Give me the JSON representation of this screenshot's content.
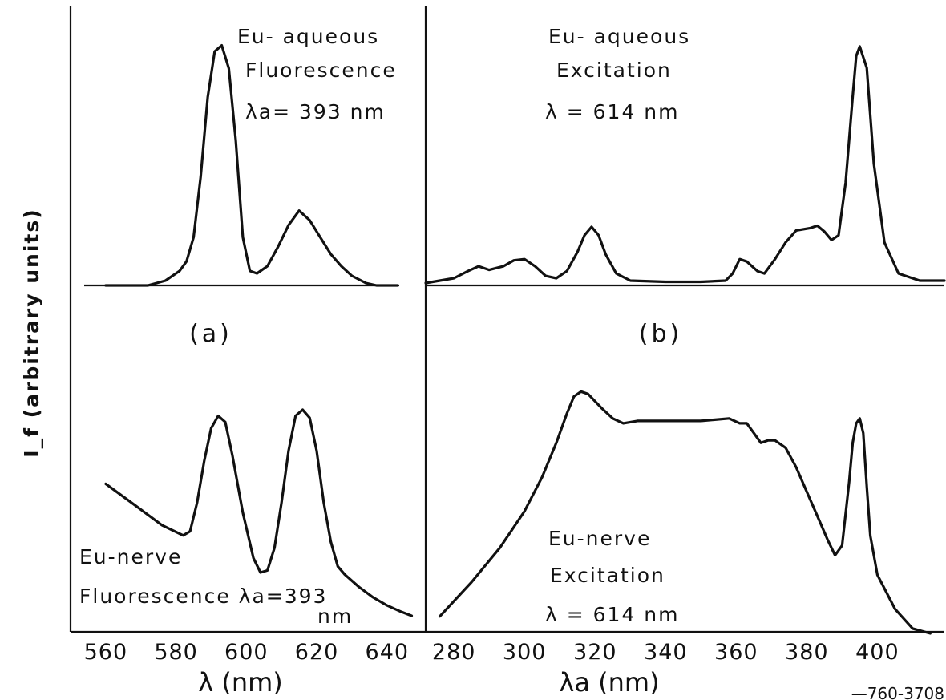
{
  "ylabel": "I_f (arbitrary units)",
  "footer_code": "—760-3708",
  "chart_data": [
    {
      "id": "a",
      "type": "line",
      "panel_label": "(a)",
      "xlabel": "λ (nm)",
      "xlim": [
        550,
        651
      ],
      "xticks": [
        560,
        580,
        600,
        620,
        640
      ],
      "subplots": [
        {
          "annotation": [
            "Eu- aqueous",
            "Fluorescence",
            "λa= 393 nm"
          ],
          "ylim": [
            0,
            1.05
          ],
          "x": [
            560,
            572,
            577,
            581,
            583,
            585,
            587,
            589,
            591,
            593,
            595,
            597,
            599,
            601,
            603,
            606,
            609,
            612,
            615,
            618,
            621,
            624,
            627,
            630,
            634,
            637,
            643
          ],
          "y": [
            0,
            0,
            0.02,
            0.06,
            0.1,
            0.2,
            0.45,
            0.78,
            0.97,
            0.995,
            0.9,
            0.6,
            0.2,
            0.06,
            0.05,
            0.08,
            0.16,
            0.25,
            0.31,
            0.27,
            0.2,
            0.13,
            0.08,
            0.04,
            0.01,
            0,
            0
          ]
        },
        {
          "annotation": [
            "Eu-nerve",
            "Fluorescence λa=393",
            "nm"
          ],
          "ylim": [
            0,
            1.05
          ],
          "x": [
            560,
            568,
            576,
            582,
            584,
            586,
            588,
            590,
            592,
            594,
            596,
            599,
            602,
            604,
            606,
            608,
            610,
            612,
            614,
            616,
            618,
            620,
            622,
            624,
            626,
            628,
            632,
            636,
            640,
            644,
            647
          ],
          "y": [
            0.64,
            0.54,
            0.44,
            0.39,
            0.41,
            0.55,
            0.75,
            0.91,
            0.97,
            0.94,
            0.78,
            0.5,
            0.28,
            0.21,
            0.22,
            0.33,
            0.55,
            0.8,
            0.97,
            1.0,
            0.96,
            0.8,
            0.55,
            0.36,
            0.24,
            0.2,
            0.14,
            0.09,
            0.05,
            0.02,
            0.0
          ]
        }
      ]
    },
    {
      "id": "b",
      "type": "line",
      "panel_label": "(b)",
      "xlabel": "λa (nm)",
      "xlim": [
        272,
        419
      ],
      "xticks": [
        280,
        300,
        320,
        340,
        360,
        380,
        400
      ],
      "subplots": [
        {
          "annotation": [
            "Eu- aqueous",
            "Excitation",
            "λ = 614 nm"
          ],
          "ylim": [
            0,
            1.05
          ],
          "x": [
            272,
            280,
            284,
            287,
            290,
            294,
            297,
            300,
            303,
            306,
            309,
            312,
            315,
            317,
            319,
            321,
            323,
            326,
            330,
            340,
            350,
            357,
            359,
            361,
            363,
            366,
            368,
            371,
            374,
            377,
            379,
            381,
            383,
            385,
            387,
            389,
            391,
            393,
            394,
            395,
            397,
            399,
            402,
            406,
            412,
            419
          ],
          "y": [
            0,
            0.02,
            0.05,
            0.07,
            0.055,
            0.07,
            0.095,
            0.1,
            0.07,
            0.03,
            0.02,
            0.05,
            0.13,
            0.2,
            0.235,
            0.2,
            0.12,
            0.04,
            0.01,
            0.005,
            0.005,
            0.01,
            0.04,
            0.1,
            0.09,
            0.05,
            0.04,
            0.1,
            0.17,
            0.22,
            0.225,
            0.23,
            0.24,
            0.215,
            0.18,
            0.2,
            0.42,
            0.78,
            0.95,
            0.99,
            0.9,
            0.5,
            0.17,
            0.04,
            0.01,
            0.01
          ]
        },
        {
          "annotation": [
            "Eu-nerve",
            "Excitation",
            "λ = 614 nm"
          ],
          "ylim": [
            0,
            1.05
          ],
          "x": [
            276,
            285,
            293,
            300,
            305,
            309,
            312,
            314,
            316,
            318,
            320,
            322,
            325,
            328,
            332,
            340,
            350,
            358,
            361,
            363,
            365,
            367,
            369,
            371,
            374,
            377,
            380,
            383,
            386,
            388,
            390,
            392,
            393,
            394,
            395,
            396,
            397,
            398,
            400,
            405,
            410,
            415
          ],
          "y": [
            0.07,
            0.21,
            0.35,
            0.5,
            0.64,
            0.78,
            0.9,
            0.97,
            0.99,
            0.98,
            0.95,
            0.92,
            0.88,
            0.86,
            0.87,
            0.87,
            0.87,
            0.88,
            0.86,
            0.86,
            0.82,
            0.78,
            0.79,
            0.79,
            0.76,
            0.68,
            0.58,
            0.48,
            0.38,
            0.32,
            0.36,
            0.62,
            0.78,
            0.86,
            0.88,
            0.82,
            0.6,
            0.4,
            0.24,
            0.1,
            0.02,
            0.0
          ]
        }
      ]
    }
  ]
}
